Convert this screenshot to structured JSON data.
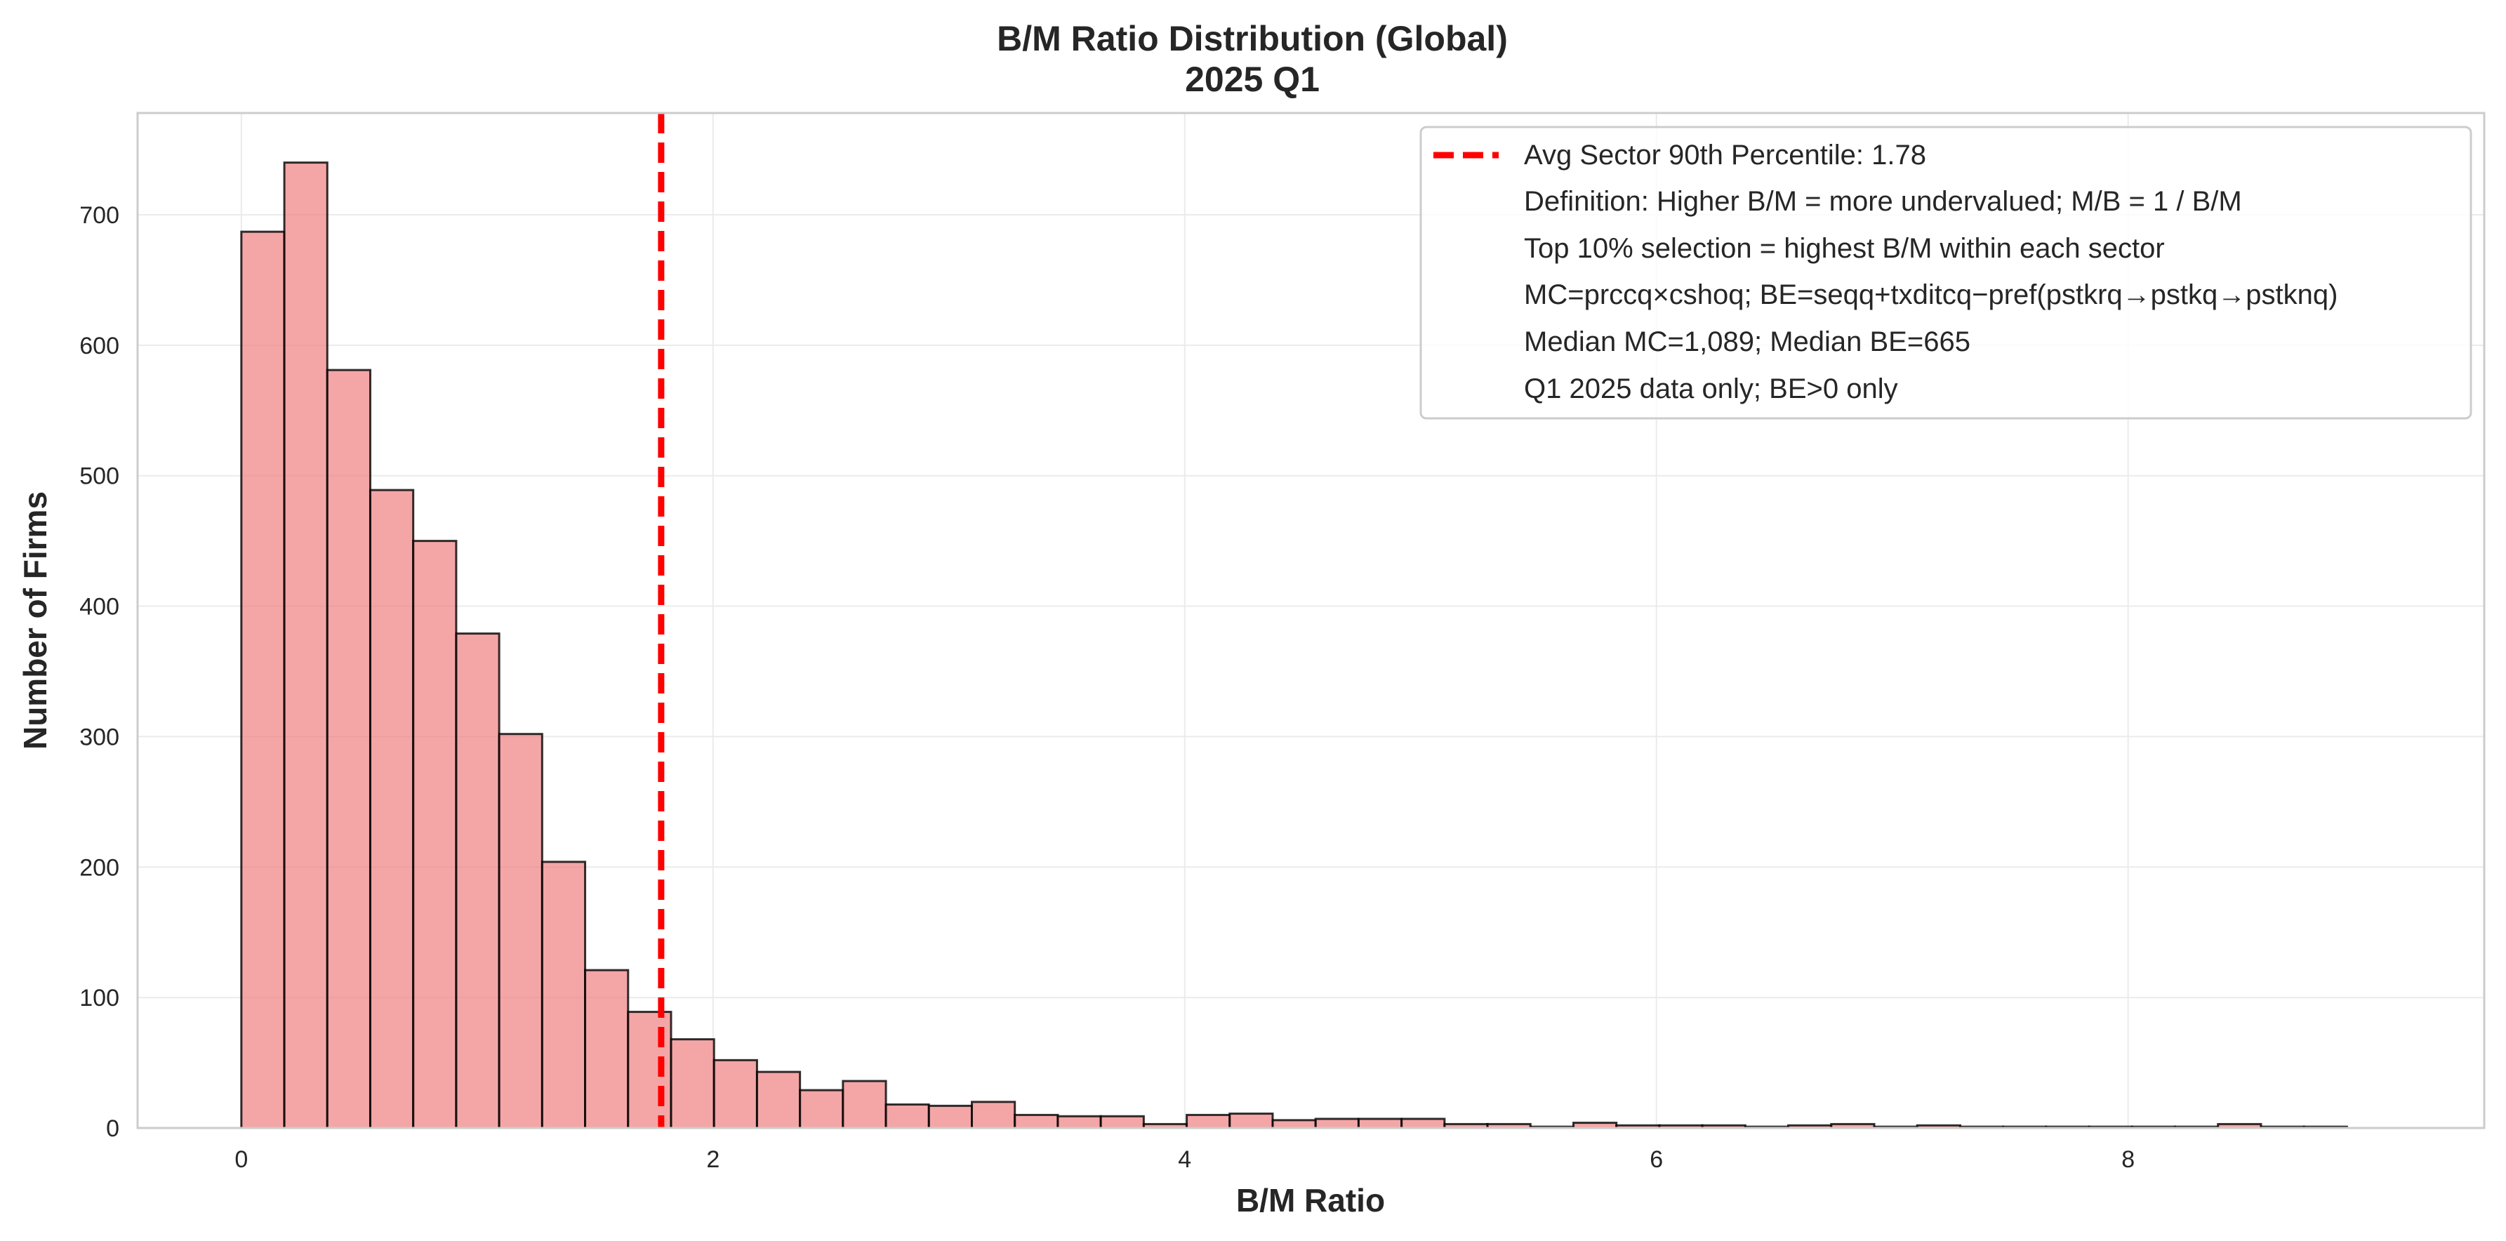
{
  "chart_data": {
    "type": "bar",
    "title": "B/M Ratio Distribution (Global)",
    "subtitle": "2025 Q1",
    "xlabel": "B/M Ratio",
    "ylabel": "Number of Firms",
    "xlim": [
      -0.44,
      9.51
    ],
    "ylim": [
      0,
      778
    ],
    "x_ticks": [
      0,
      2,
      4,
      6,
      8
    ],
    "x_tick_labels": [
      "0",
      "2",
      "4",
      "6",
      "8"
    ],
    "y_ticks": [
      0,
      100,
      200,
      300,
      400,
      500,
      600,
      700
    ],
    "y_tick_labels": [
      "0",
      "100",
      "200",
      "300",
      "400",
      "500",
      "600",
      "700"
    ],
    "grid": true,
    "legend_position": "top-right",
    "bin_start": 0.0,
    "bin_width": 0.1822,
    "values": [
      687,
      740,
      581,
      489,
      450,
      379,
      302,
      204,
      121,
      89,
      68,
      52,
      43,
      29,
      36,
      18,
      17,
      20,
      10,
      9,
      9,
      3,
      10,
      11,
      6,
      7,
      7,
      7,
      3,
      3,
      1,
      4,
      2,
      2,
      2,
      1,
      2,
      3,
      1,
      2,
      1,
      1,
      1,
      1,
      1,
      1,
      3,
      1,
      1
    ],
    "bar_color": "#F08080",
    "bar_edge_color": "#000000",
    "reference_line": {
      "x": 1.78,
      "label": "Avg Sector 90th Percentile: 1.78",
      "color": "#FF0000",
      "style": "dashed"
    },
    "legend_notes": [
      "Definition: Higher B/M = more undervalued; M/B = 1 / B/M",
      "Top 10% selection = highest B/M within each sector",
      "MC=prccq×cshoq; BE=seqq+txditcq−pref(pstkrq→pstkq→pstknq)",
      "Median MC=1,089; Median BE=665",
      "Q1 2025 data only; BE>0 only"
    ]
  }
}
